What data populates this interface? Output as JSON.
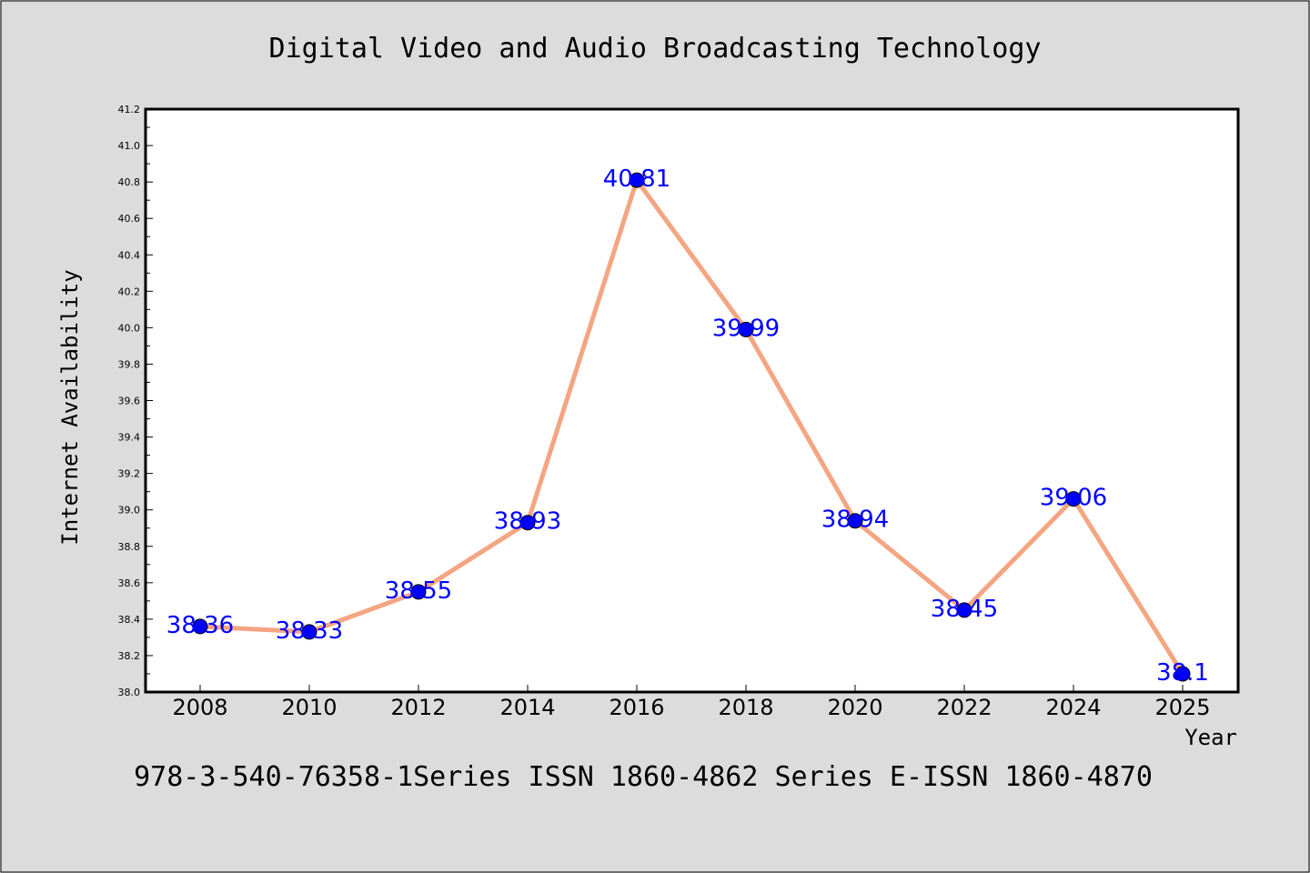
{
  "footer": "978-3-540-76358-1Series ISSN 1860-4862 Series E-ISSN 1860-4870",
  "colors": {
    "background": "#dcdcdc",
    "plot_background": "#ffffff",
    "line": "#f4a582",
    "marker": "#0000ff",
    "data_label": "#0000ff"
  },
  "chart_data": {
    "type": "line",
    "title": "Digital Video and Audio Broadcasting Technology",
    "xlabel": "Year",
    "ylabel": "Internet Availability",
    "categories": [
      "2008",
      "2010",
      "2012",
      "2014",
      "2016",
      "2018",
      "2020",
      "2022",
      "2024",
      "2025"
    ],
    "series": [
      {
        "values": [
          38.36,
          38.33,
          38.55,
          38.93,
          40.81,
          39.99,
          38.94,
          38.45,
          39.06,
          38.1
        ],
        "labels": [
          "38.36",
          "38.33",
          "38.55",
          "38.93",
          "40.81",
          "39.99",
          "38.94",
          "38.45",
          "39.06",
          "38.1"
        ]
      }
    ],
    "ylim": [
      38.0,
      41.2
    ],
    "yticks": [
      "38.0",
      "38.2",
      "38.4",
      "38.6",
      "38.8",
      "39.0",
      "39.2",
      "39.4",
      "39.6",
      "39.8",
      "40.0",
      "40.2",
      "40.4",
      "40.6",
      "40.8",
      "41.0",
      "41.2"
    ],
    "grid": false,
    "legend": "none"
  }
}
